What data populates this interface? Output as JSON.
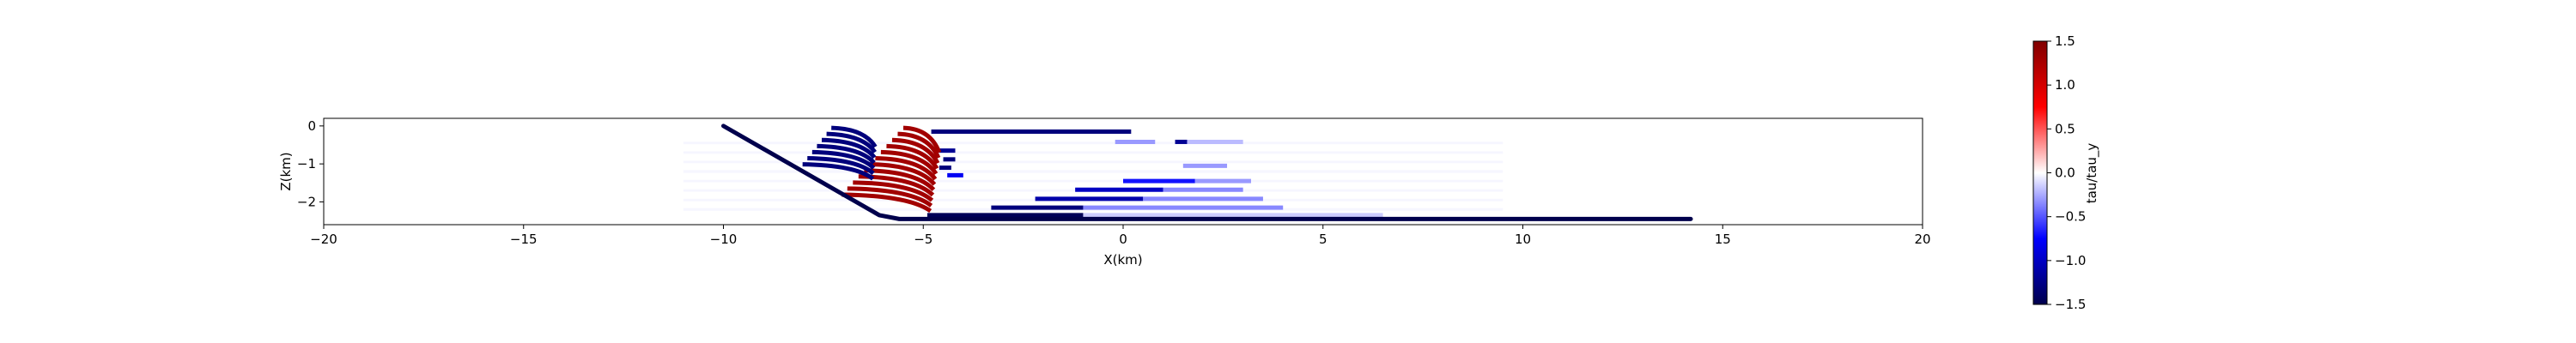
{
  "chart_data": {
    "type": "scatter",
    "xlabel": "X(km)",
    "ylabel": "Z(km)",
    "xlim": [
      -20,
      20
    ],
    "ylim": [
      -2.6,
      0.2
    ],
    "xticks": [
      -20,
      -15,
      -10,
      -5,
      0,
      5,
      10,
      15,
      20
    ],
    "xtick_labels": [
      "−20",
      "−15",
      "−10",
      "−5",
      "0",
      "5",
      "10",
      "15",
      "20"
    ],
    "yticks": [
      0,
      -1,
      -2
    ],
    "ytick_labels": [
      "0",
      "−1",
      "−2"
    ],
    "colorbar": {
      "label": "tau/tau_y",
      "range": [
        -1.5,
        1.5
      ],
      "ticks": [
        1.5,
        1.0,
        0.5,
        0.0,
        -0.5,
        -1.0,
        -1.5
      ],
      "tick_labels": [
        "1.5",
        "1.0",
        "0.5",
        "0.0",
        "−0.5",
        "−1.0",
        "−1.5"
      ],
      "colormap": "seismic",
      "colors": {
        "low": "#00004c",
        "mid": "#ffffff",
        "high": "#800000"
      }
    },
    "fault": {
      "value": -1.5,
      "points": [
        [
          -10,
          0
        ],
        [
          -6.1,
          -2.35
        ],
        [
          -5.6,
          -2.45
        ],
        [
          14.2,
          -2.45
        ]
      ]
    },
    "series": [
      {
        "z": -0.15,
        "segments": [
          {
            "x0": -4.8,
            "x1": 0.2,
            "value": -1.3
          }
        ]
      },
      {
        "z": -0.42,
        "segments": [
          {
            "x0": -0.2,
            "x1": 0.8,
            "value": -0.3
          },
          {
            "x0": 1.3,
            "x1": 1.6,
            "value": -1.2
          },
          {
            "x0": 1.6,
            "x1": 3.0,
            "value": -0.2
          }
        ]
      },
      {
        "z": -1.05,
        "segments": [
          {
            "x0": 1.5,
            "x1": 2.6,
            "value": -0.3
          }
        ]
      },
      {
        "z": -1.45,
        "segments": [
          {
            "x0": 0.0,
            "x1": 1.8,
            "value": -0.7
          },
          {
            "x0": 1.8,
            "x1": 3.2,
            "value": -0.3
          }
        ]
      },
      {
        "z": -1.68,
        "segments": [
          {
            "x0": -1.2,
            "x1": 1.0,
            "value": -1.0
          },
          {
            "x0": 1.0,
            "x1": 3.0,
            "value": -0.35
          }
        ]
      },
      {
        "z": -1.92,
        "segments": [
          {
            "x0": -2.2,
            "x1": 0.5,
            "value": -1.1
          },
          {
            "x0": 0.5,
            "x1": 3.5,
            "value": -0.35
          }
        ]
      },
      {
        "z": -2.15,
        "segments": [
          {
            "x0": -3.3,
            "x1": -1.0,
            "value": -1.3
          },
          {
            "x0": -1.0,
            "x1": 4.0,
            "value": -0.35
          }
        ]
      },
      {
        "z": -2.35,
        "segments": [
          {
            "x0": -4.9,
            "x1": -1.0,
            "value": -1.45
          },
          {
            "x0": -1.0,
            "x1": 6.5,
            "value": -0.15
          }
        ]
      },
      {
        "z": -0.65,
        "segments": [
          {
            "x0": -4.7,
            "x1": -4.2,
            "value": -1.2
          }
        ]
      },
      {
        "z": -0.88,
        "segments": [
          {
            "x0": -4.5,
            "x1": -4.2,
            "value": -1.3
          }
        ]
      },
      {
        "z": -1.1,
        "segments": [
          {
            "x0": -4.6,
            "x1": -4.3,
            "value": -1.3
          }
        ]
      },
      {
        "z": -1.3,
        "segments": [
          {
            "x0": -4.4,
            "x1": -4.0,
            "value": -0.8
          }
        ]
      }
    ],
    "arcs_positive": {
      "value": 1.3,
      "anchor": [
        -4.6,
        -0.7
      ],
      "count": 12,
      "first_start_x": -5.5,
      "step_x": -0.14,
      "step_z": -0.16
    },
    "arcs_negative": {
      "value": -1.3,
      "anchor": [
        -6.2,
        -0.55
      ],
      "count": 7,
      "first_start_x": -7.3,
      "step_x": -0.12,
      "step_z": -0.16
    },
    "faint_background": {
      "value": -0.05,
      "x_range": [
        -11,
        9.5
      ],
      "z_rows": [
        -0.45,
        -0.7,
        -0.95,
        -1.2,
        -1.45,
        -1.7,
        -1.95,
        -2.2
      ]
    }
  }
}
